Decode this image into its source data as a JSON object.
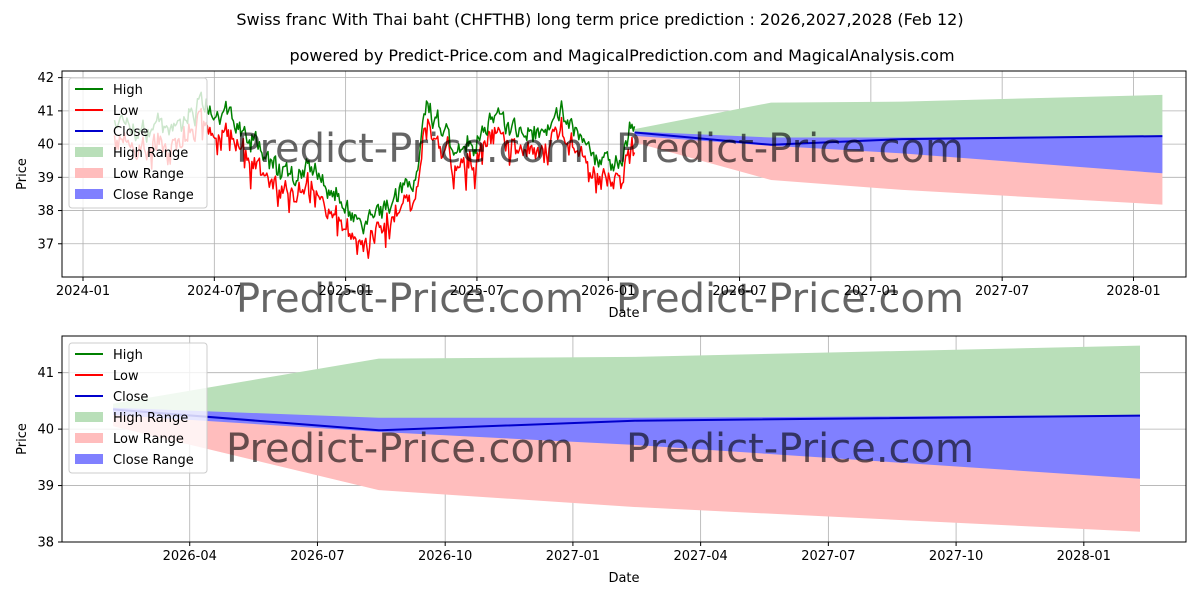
{
  "title": "Swiss franc With Thai baht (CHFTHB) long term price prediction : 2026,2027,2028 (Feb 12)",
  "subtitle": "powered by Predict-Price.com and MagicalPrediction.com and MagicalAnalysis.com",
  "watermark": "Predict-Price.com",
  "colors": {
    "high": "#008000",
    "low": "#ff0000",
    "close": "#0000cc",
    "high_range": "#b9dfb9",
    "low_range": "#ffbdbd",
    "close_range": "#8080ff",
    "grid": "#b0b0b0"
  },
  "chart_data": [
    {
      "type": "line",
      "name": "full-history-and-forecast",
      "xlabel": "Date",
      "ylabel": "Price",
      "xlim": [
        2023.92,
        2028.2
      ],
      "ylim": [
        36.0,
        42.2
      ],
      "x_ticks": [
        {
          "label": "2024-01",
          "x": 2024.0
        },
        {
          "label": "2024-07",
          "x": 2024.5
        },
        {
          "label": "2025-01",
          "x": 2025.0
        },
        {
          "label": "2025-07",
          "x": 2025.5
        },
        {
          "label": "2026-01",
          "x": 2026.0
        },
        {
          "label": "2026-07",
          "x": 2026.5
        },
        {
          "label": "2027-01",
          "x": 2027.0
        },
        {
          "label": "2027-07",
          "x": 2027.5
        },
        {
          "label": "2028-01",
          "x": 2028.0
        }
      ],
      "y_ticks": [
        37,
        38,
        39,
        40,
        41,
        42
      ],
      "legend": [
        {
          "label": "High",
          "kind": "line",
          "color": "#008000"
        },
        {
          "label": "Low",
          "kind": "line",
          "color": "#ff0000"
        },
        {
          "label": "Close",
          "kind": "line",
          "color": "#0000cc"
        },
        {
          "label": "High Range",
          "kind": "patch",
          "color": "#b9dfb9"
        },
        {
          "label": "Low Range",
          "kind": "patch",
          "color": "#ffbdbd"
        },
        {
          "label": "Close Range",
          "kind": "patch",
          "color": "#8080ff"
        }
      ],
      "history_start": 2024.12,
      "history_end": 2026.1,
      "history_seed": 12,
      "history_anchors": [
        [
          2024.12,
          40.3
        ],
        [
          2024.25,
          40.2
        ],
        [
          2024.38,
          40.6
        ],
        [
          2024.48,
          40.9
        ],
        [
          2024.55,
          40.7
        ],
        [
          2024.62,
          40.0
        ],
        [
          2024.7,
          39.2
        ],
        [
          2024.78,
          38.8
        ],
        [
          2024.86,
          39.0
        ],
        [
          2024.94,
          38.2
        ],
        [
          2025.0,
          37.7
        ],
        [
          2025.08,
          37.3
        ],
        [
          2025.14,
          37.6
        ],
        [
          2025.22,
          38.3
        ],
        [
          2025.27,
          38.5
        ],
        [
          2025.3,
          40.8
        ],
        [
          2025.36,
          40.2
        ],
        [
          2025.42,
          39.6
        ],
        [
          2025.5,
          39.9
        ],
        [
          2025.56,
          40.6
        ],
        [
          2025.62,
          40.2
        ],
        [
          2025.7,
          40.0
        ],
        [
          2025.76,
          40.1
        ],
        [
          2025.82,
          40.7
        ],
        [
          2025.88,
          40.1
        ],
        [
          2025.94,
          39.4
        ],
        [
          2026.0,
          39.2
        ],
        [
          2026.06,
          39.3
        ],
        [
          2026.08,
          40.5
        ],
        [
          2026.1,
          40.3
        ]
      ],
      "forecast_x": [
        2026.1,
        2026.62,
        2027.12,
        2028.11
      ],
      "close_forecast": [
        40.35,
        39.98,
        40.15,
        40.24
      ],
      "high_range_upper": [
        40.45,
        41.25,
        41.28,
        41.48
      ],
      "close_range_upper": [
        40.38,
        40.2,
        40.2,
        40.25
      ],
      "close_range_lower": [
        40.25,
        39.95,
        39.72,
        39.12
      ],
      "low_range_lower": [
        40.05,
        38.92,
        38.62,
        38.18
      ]
    },
    {
      "type": "line",
      "name": "forecast-detail",
      "xlabel": "Date",
      "ylabel": "Price",
      "xlim": [
        2026.0,
        2028.2
      ],
      "ylim": [
        38.0,
        41.65
      ],
      "x_ticks": [
        {
          "label": "2026-04",
          "x": 2026.25
        },
        {
          "label": "2026-07",
          "x": 2026.5
        },
        {
          "label": "2026-10",
          "x": 2026.75
        },
        {
          "label": "2027-01",
          "x": 2027.0
        },
        {
          "label": "2027-04",
          "x": 2027.25
        },
        {
          "label": "2027-07",
          "x": 2027.5
        },
        {
          "label": "2027-10",
          "x": 2027.75
        },
        {
          "label": "2028-01",
          "x": 2028.0
        }
      ],
      "y_ticks": [
        38,
        39,
        40,
        41
      ],
      "legend": [
        {
          "label": "High",
          "kind": "line",
          "color": "#008000"
        },
        {
          "label": "Low",
          "kind": "line",
          "color": "#ff0000"
        },
        {
          "label": "Close",
          "kind": "line",
          "color": "#0000cc"
        },
        {
          "label": "High Range",
          "kind": "patch",
          "color": "#b9dfb9"
        },
        {
          "label": "Low Range",
          "kind": "patch",
          "color": "#ffbdbd"
        },
        {
          "label": "Close Range",
          "kind": "patch",
          "color": "#8080ff"
        }
      ],
      "forecast_x": [
        2026.1,
        2026.62,
        2027.12,
        2028.11
      ],
      "close_forecast": [
        40.35,
        39.98,
        40.15,
        40.24
      ],
      "high_range_upper": [
        40.45,
        41.25,
        41.28,
        41.48
      ],
      "close_range_upper": [
        40.38,
        40.2,
        40.2,
        40.25
      ],
      "close_range_lower": [
        40.25,
        39.95,
        39.72,
        39.12
      ],
      "low_range_lower": [
        40.05,
        38.92,
        38.62,
        38.18
      ]
    }
  ]
}
